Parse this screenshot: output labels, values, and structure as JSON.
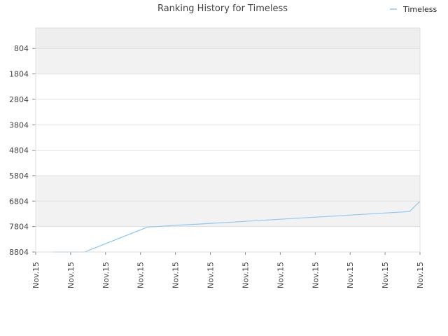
{
  "chart_data": {
    "type": "line",
    "title": "Ranking History for Timeless",
    "xlabel": "",
    "ylabel": "",
    "y_axis_inverted": true,
    "ylim": [
      8804,
      0
    ],
    "y_ticks": [
      "804",
      "1804",
      "2804",
      "3804",
      "4804",
      "5804",
      "6804",
      "7804",
      "8804"
    ],
    "x_ticks": [
      "Nov.15",
      "Nov.15",
      "Nov.15",
      "Nov.15",
      "Nov.15",
      "Nov.15",
      "Nov.15",
      "Nov.15",
      "Nov.15",
      "Nov.15",
      "Nov.15",
      "Nov.15"
    ],
    "grid": true,
    "band_colors": [
      "#eeeeee",
      "#f2f2f2"
    ],
    "legend": {
      "position": "top-right",
      "entries": [
        "Timeless"
      ]
    },
    "series": [
      {
        "name": "Timeless",
        "color": "#90c8f0",
        "x": [
          0.5,
          1.4,
          3.2,
          3.6,
          3.9,
          4.5,
          5.0,
          5.5,
          6.0,
          6.5,
          7.0,
          7.5,
          8.0,
          8.5,
          9.0,
          9.5,
          10.0,
          10.5,
          10.7,
          11.0
        ],
        "values": [
          8804,
          8804,
          7824,
          7794,
          7764,
          7720,
          7679,
          7639,
          7598,
          7557,
          7517,
          7476,
          7435,
          7394,
          7354,
          7313,
          7272,
          7231,
          7215,
          6811
        ]
      }
    ]
  }
}
